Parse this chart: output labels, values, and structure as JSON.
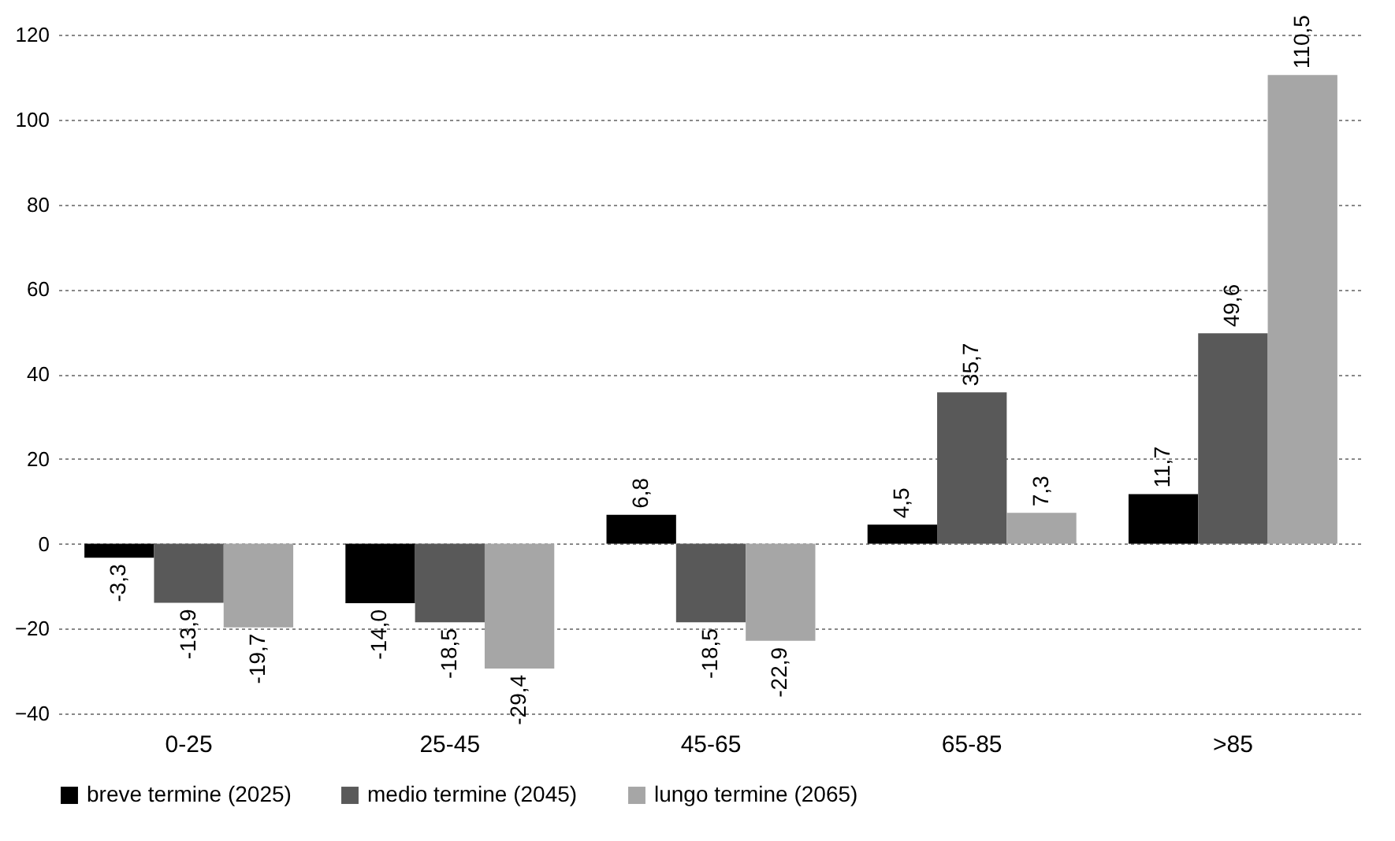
{
  "chart_data": {
    "type": "bar",
    "categories": [
      "0-25",
      "25-45",
      "45-65",
      "65-85",
      ">85"
    ],
    "series": [
      {
        "name": "breve termine (2025)",
        "color": "#000000",
        "values": [
          -3.3,
          -14.0,
          6.8,
          4.5,
          11.7
        ],
        "value_labels": [
          "-3,3",
          "-14,0",
          "6,8",
          "4,5",
          "11,7"
        ]
      },
      {
        "name": "medio termine (2045)",
        "color": "#595959",
        "values": [
          -13.9,
          -18.5,
          -18.5,
          35.7,
          49.6
        ],
        "value_labels": [
          "-13,9",
          "-18,5",
          "-18,5",
          "35,7",
          "49,6"
        ]
      },
      {
        "name": "lungo termine (2065)",
        "color": "#a6a6a6",
        "values": [
          -19.7,
          -29.4,
          -22.9,
          7.3,
          110.5
        ],
        "value_labels": [
          "-19,7",
          "-29,4",
          "-22,9",
          "7,3",
          "110,5"
        ]
      }
    ],
    "ylim": [
      -40,
      120
    ],
    "yticks": [
      -40,
      -20,
      0,
      20,
      40,
      60,
      80,
      100,
      120
    ],
    "grid": "y",
    "legend": "bottom"
  }
}
